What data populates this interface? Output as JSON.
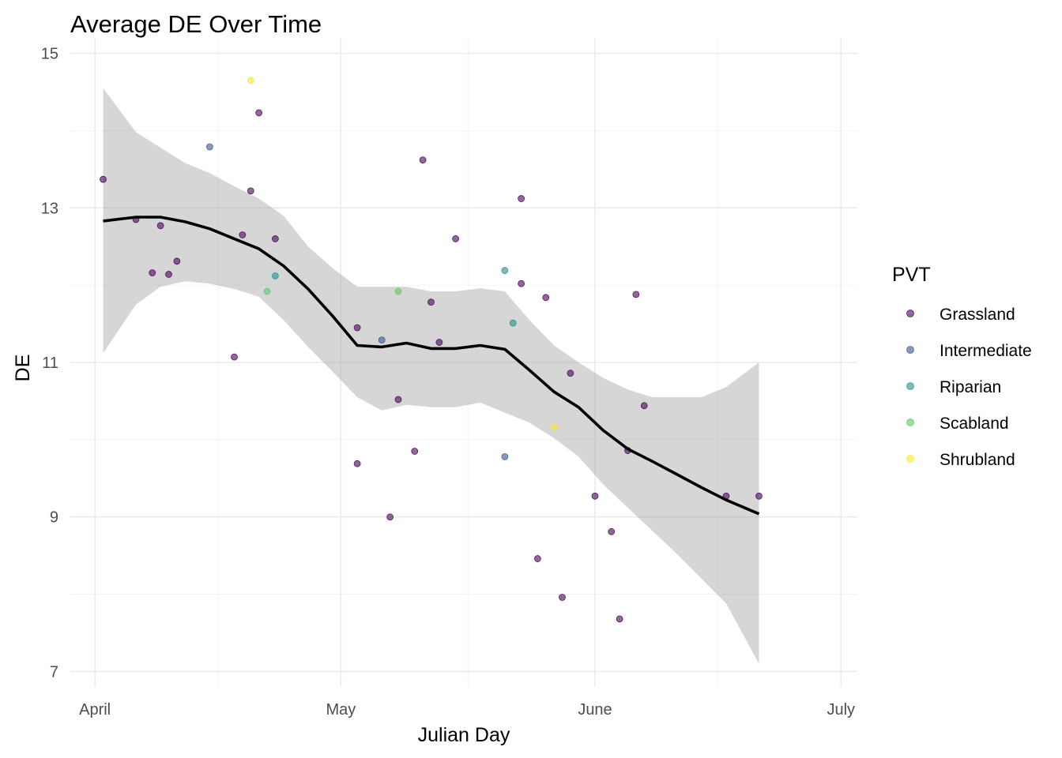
{
  "chart_data": {
    "type": "scatter",
    "title": "Average DE Over Time",
    "xlabel": "Julian Day",
    "ylabel": "DE",
    "x_axis": {
      "kind": "date",
      "range": [
        "2023-03-29",
        "2023-07-03"
      ],
      "ticks": [
        {
          "date": "2023-04-01",
          "label": "April"
        },
        {
          "date": "2023-05-01",
          "label": "May"
        },
        {
          "date": "2023-06-01",
          "label": "June"
        },
        {
          "date": "2023-07-01",
          "label": "July"
        }
      ]
    },
    "ylim": [
      6.8,
      15.2
    ],
    "yticks": [
      7,
      9,
      11,
      13,
      15
    ],
    "grid": true,
    "legend": {
      "title": "PVT",
      "position": "right",
      "entries": [
        "Grassland",
        "Intermediate",
        "Riparian",
        "Scabland",
        "Shrubland"
      ]
    },
    "colors": {
      "Grassland": "#440154",
      "Intermediate": "#3b528b",
      "Riparian": "#21908c",
      "Scabland": "#5dc863",
      "Shrubland": "#fde725",
      "smooth_line": "#000000",
      "confidence_band": "#999999"
    },
    "series": [
      {
        "name": "Grassland",
        "points": [
          {
            "x": "2023-04-02",
            "y": 13.37
          },
          {
            "x": "2023-04-06",
            "y": 12.85
          },
          {
            "x": "2023-04-08",
            "y": 12.16
          },
          {
            "x": "2023-04-09",
            "y": 12.77
          },
          {
            "x": "2023-04-10",
            "y": 12.14
          },
          {
            "x": "2023-04-11",
            "y": 12.31
          },
          {
            "x": "2023-04-18",
            "y": 11.07
          },
          {
            "x": "2023-04-19",
            "y": 12.65
          },
          {
            "x": "2023-04-20",
            "y": 13.22
          },
          {
            "x": "2023-04-21",
            "y": 14.23
          },
          {
            "x": "2023-04-23",
            "y": 12.6
          },
          {
            "x": "2023-05-03",
            "y": 11.45
          },
          {
            "x": "2023-05-03",
            "y": 9.69
          },
          {
            "x": "2023-05-07",
            "y": 9.0
          },
          {
            "x": "2023-05-08",
            "y": 10.52
          },
          {
            "x": "2023-05-10",
            "y": 9.85
          },
          {
            "x": "2023-05-11",
            "y": 13.62
          },
          {
            "x": "2023-05-12",
            "y": 11.78
          },
          {
            "x": "2023-05-13",
            "y": 11.26
          },
          {
            "x": "2023-05-15",
            "y": 12.6
          },
          {
            "x": "2023-05-23",
            "y": 12.02
          },
          {
            "x": "2023-05-23",
            "y": 13.12
          },
          {
            "x": "2023-05-25",
            "y": 8.46
          },
          {
            "x": "2023-05-26",
            "y": 11.84
          },
          {
            "x": "2023-05-28",
            "y": 7.96
          },
          {
            "x": "2023-05-29",
            "y": 10.86
          },
          {
            "x": "2023-06-01",
            "y": 9.27
          },
          {
            "x": "2023-06-03",
            "y": 8.81
          },
          {
            "x": "2023-06-04",
            "y": 7.68
          },
          {
            "x": "2023-06-05",
            "y": 9.86
          },
          {
            "x": "2023-06-06",
            "y": 11.88
          },
          {
            "x": "2023-06-07",
            "y": 10.44
          },
          {
            "x": "2023-06-17",
            "y": 9.27
          },
          {
            "x": "2023-06-21",
            "y": 9.27
          }
        ]
      },
      {
        "name": "Intermediate",
        "points": [
          {
            "x": "2023-04-15",
            "y": 13.79
          },
          {
            "x": "2023-05-06",
            "y": 11.29
          },
          {
            "x": "2023-05-21",
            "y": 9.78
          }
        ]
      },
      {
        "name": "Riparian",
        "points": [
          {
            "x": "2023-04-23",
            "y": 12.12
          },
          {
            "x": "2023-05-21",
            "y": 12.19
          },
          {
            "x": "2023-05-22",
            "y": 11.51
          }
        ]
      },
      {
        "name": "Scabland",
        "points": [
          {
            "x": "2023-04-22",
            "y": 11.92
          },
          {
            "x": "2023-05-08",
            "y": 11.92
          }
        ]
      },
      {
        "name": "Shrubland",
        "points": [
          {
            "x": "2023-04-20",
            "y": 14.65
          },
          {
            "x": "2023-05-27",
            "y": 10.16
          }
        ]
      }
    ],
    "smooth": [
      {
        "x": "2023-04-02",
        "fit": 12.83,
        "lower": 11.12,
        "upper": 14.55
      },
      {
        "x": "2023-04-06",
        "fit": 12.88,
        "lower": 11.75,
        "upper": 13.98
      },
      {
        "x": "2023-04-09",
        "fit": 12.88,
        "lower": 11.98,
        "upper": 13.78
      },
      {
        "x": "2023-04-12",
        "fit": 12.82,
        "lower": 12.05,
        "upper": 13.58
      },
      {
        "x": "2023-04-15",
        "fit": 12.73,
        "lower": 12.02,
        "upper": 13.45
      },
      {
        "x": "2023-04-18",
        "fit": 12.6,
        "lower": 11.95,
        "upper": 13.28
      },
      {
        "x": "2023-04-21",
        "fit": 12.47,
        "lower": 11.85,
        "upper": 13.12
      },
      {
        "x": "2023-04-24",
        "fit": 12.25,
        "lower": 11.55,
        "upper": 12.9
      },
      {
        "x": "2023-04-27",
        "fit": 11.95,
        "lower": 11.2,
        "upper": 12.5
      },
      {
        "x": "2023-04-30",
        "fit": 11.6,
        "lower": 10.88,
        "upper": 12.22
      },
      {
        "x": "2023-05-03",
        "fit": 11.22,
        "lower": 10.55,
        "upper": 11.98
      },
      {
        "x": "2023-05-06",
        "fit": 11.2,
        "lower": 10.38,
        "upper": 11.98
      },
      {
        "x": "2023-05-09",
        "fit": 11.25,
        "lower": 10.45,
        "upper": 11.98
      },
      {
        "x": "2023-05-12",
        "fit": 11.18,
        "lower": 10.42,
        "upper": 11.92
      },
      {
        "x": "2023-05-15",
        "fit": 11.18,
        "lower": 10.42,
        "upper": 11.92
      },
      {
        "x": "2023-05-18",
        "fit": 11.22,
        "lower": 10.48,
        "upper": 11.96
      },
      {
        "x": "2023-05-21",
        "fit": 11.17,
        "lower": 10.35,
        "upper": 11.92
      },
      {
        "x": "2023-05-24",
        "fit": 10.9,
        "lower": 10.22,
        "upper": 11.55
      },
      {
        "x": "2023-05-27",
        "fit": 10.62,
        "lower": 10.02,
        "upper": 11.22
      },
      {
        "x": "2023-05-30",
        "fit": 10.42,
        "lower": 9.78,
        "upper": 11.0
      },
      {
        "x": "2023-06-02",
        "fit": 10.12,
        "lower": 9.42,
        "upper": 10.8
      },
      {
        "x": "2023-06-05",
        "fit": 9.88,
        "lower": 9.12,
        "upper": 10.65
      },
      {
        "x": "2023-06-08",
        "fit": 9.72,
        "lower": 8.82,
        "upper": 10.55
      },
      {
        "x": "2023-06-11",
        "fit": 9.55,
        "lower": 8.52,
        "upper": 10.55
      },
      {
        "x": "2023-06-14",
        "fit": 9.38,
        "lower": 8.2,
        "upper": 10.55
      },
      {
        "x": "2023-06-17",
        "fit": 9.22,
        "lower": 7.88,
        "upper": 10.68
      },
      {
        "x": "2023-06-21",
        "fit": 9.04,
        "lower": 7.1,
        "upper": 11.0
      }
    ]
  }
}
